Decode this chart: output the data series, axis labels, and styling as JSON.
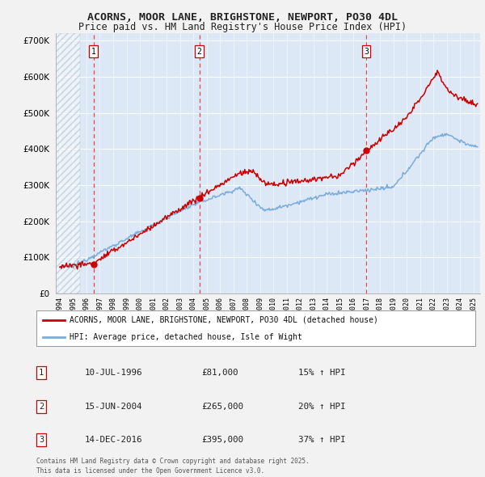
{
  "title": "ACORNS, MOOR LANE, BRIGHSTONE, NEWPORT, PO30 4DL",
  "subtitle": "Price paid vs. HM Land Registry's House Price Index (HPI)",
  "ylim": [
    0,
    720000
  ],
  "yticks": [
    0,
    100000,
    200000,
    300000,
    400000,
    500000,
    600000,
    700000
  ],
  "xlim": [
    1993.7,
    2025.5
  ],
  "fig_bg": "#f2f2f2",
  "plot_bg": "#dce8f5",
  "hatch_color": "#b0b8c8",
  "grid_color": "#ffffff",
  "sale_dates": [
    1996.53,
    2004.46,
    2016.96
  ],
  "sale_prices": [
    81000,
    265000,
    395000
  ],
  "sale_labels": [
    "1",
    "2",
    "3"
  ],
  "legend_line1": "ACORNS, MOOR LANE, BRIGHSTONE, NEWPORT, PO30 4DL (detached house)",
  "legend_line2": "HPI: Average price, detached house, Isle of Wight",
  "table_rows": [
    [
      "1",
      "10-JUL-1996",
      "£81,000",
      "15% ↑ HPI"
    ],
    [
      "2",
      "15-JUN-2004",
      "£265,000",
      "20% ↑ HPI"
    ],
    [
      "3",
      "14-DEC-2016",
      "£395,000",
      "37% ↑ HPI"
    ]
  ],
  "footer": "Contains HM Land Registry data © Crown copyright and database right 2025.\nThis data is licensed under the Open Government Licence v3.0.",
  "hpi_color": "#7aaddc",
  "price_color": "#cc0000",
  "vline_color": "#ee4444",
  "marker_color": "#cc0000",
  "title_fontsize": 9.5,
  "subtitle_fontsize": 8.5
}
